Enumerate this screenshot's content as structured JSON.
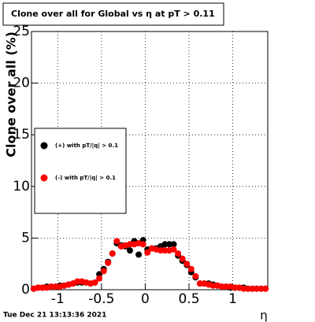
{
  "chart_data": {
    "type": "scatter",
    "title": "Clone  over all for Global vs  η at pT > 0.11",
    "y_label": "Clone  over all (%)",
    "x_label": "η",
    "footer": "Tue Dec 21 13:13:36 2021",
    "xlim": [
      -1.3,
      1.4
    ],
    "ylim": [
      0,
      25
    ],
    "xticks": [
      -1,
      -0.5,
      0,
      0.5,
      1
    ],
    "yticks": [
      0,
      5,
      10,
      15,
      20,
      25
    ],
    "grid": true,
    "x": [
      -1.275,
      -1.225,
      -1.175,
      -1.125,
      -1.075,
      -1.025,
      -0.975,
      -0.925,
      -0.875,
      -0.825,
      -0.775,
      -0.725,
      -0.675,
      -0.625,
      -0.575,
      -0.525,
      -0.475,
      -0.425,
      -0.375,
      -0.325,
      -0.275,
      -0.225,
      -0.175,
      -0.125,
      -0.075,
      -0.025,
      0.025,
      0.075,
      0.125,
      0.175,
      0.225,
      0.275,
      0.325,
      0.375,
      0.425,
      0.475,
      0.525,
      0.575,
      0.625,
      0.675,
      0.725,
      0.775,
      0.825,
      0.875,
      0.925,
      0.975,
      1.025,
      1.075,
      1.125,
      1.175,
      1.225,
      1.275,
      1.325,
      1.375
    ],
    "series": [
      {
        "name": "(+) with pT/|q| > 0.1",
        "color": "#000000",
        "values": [
          0.1,
          0.2,
          0.2,
          0.3,
          0.3,
          0.3,
          0.4,
          0.4,
          0.5,
          0.6,
          0.7,
          0.7,
          0.7,
          0.6,
          0.7,
          1.5,
          2.0,
          2.7,
          3.5,
          4.5,
          4.3,
          4.2,
          3.8,
          4.7,
          3.4,
          4.8,
          3.9,
          4.0,
          4.0,
          4.2,
          4.4,
          4.4,
          4.4,
          3.3,
          2.8,
          2.4,
          1.7,
          1.2,
          0.6,
          0.6,
          0.6,
          0.5,
          0.4,
          0.3,
          0.3,
          0.2,
          0.2,
          0.2,
          0.2,
          0.1,
          0.1,
          0.1,
          0.1,
          0.1
        ]
      },
      {
        "name": "(-) with pT/|q| > 0.1",
        "color": "#ff0000",
        "values": [
          0.1,
          0.2,
          0.2,
          0.2,
          0.3,
          0.3,
          0.3,
          0.4,
          0.5,
          0.6,
          0.8,
          0.8,
          0.7,
          0.6,
          0.7,
          1.1,
          1.8,
          2.6,
          3.5,
          4.7,
          4.2,
          4.3,
          4.4,
          4.4,
          4.5,
          4.4,
          3.6,
          4.0,
          3.9,
          3.8,
          3.8,
          3.8,
          3.9,
          3.5,
          3.0,
          2.5,
          2.0,
          1.3,
          0.6,
          0.6,
          0.5,
          0.4,
          0.4,
          0.3,
          0.3,
          0.3,
          0.2,
          0.2,
          0.1,
          0.1,
          0.1,
          0.1,
          0.1,
          0.1
        ]
      }
    ]
  }
}
